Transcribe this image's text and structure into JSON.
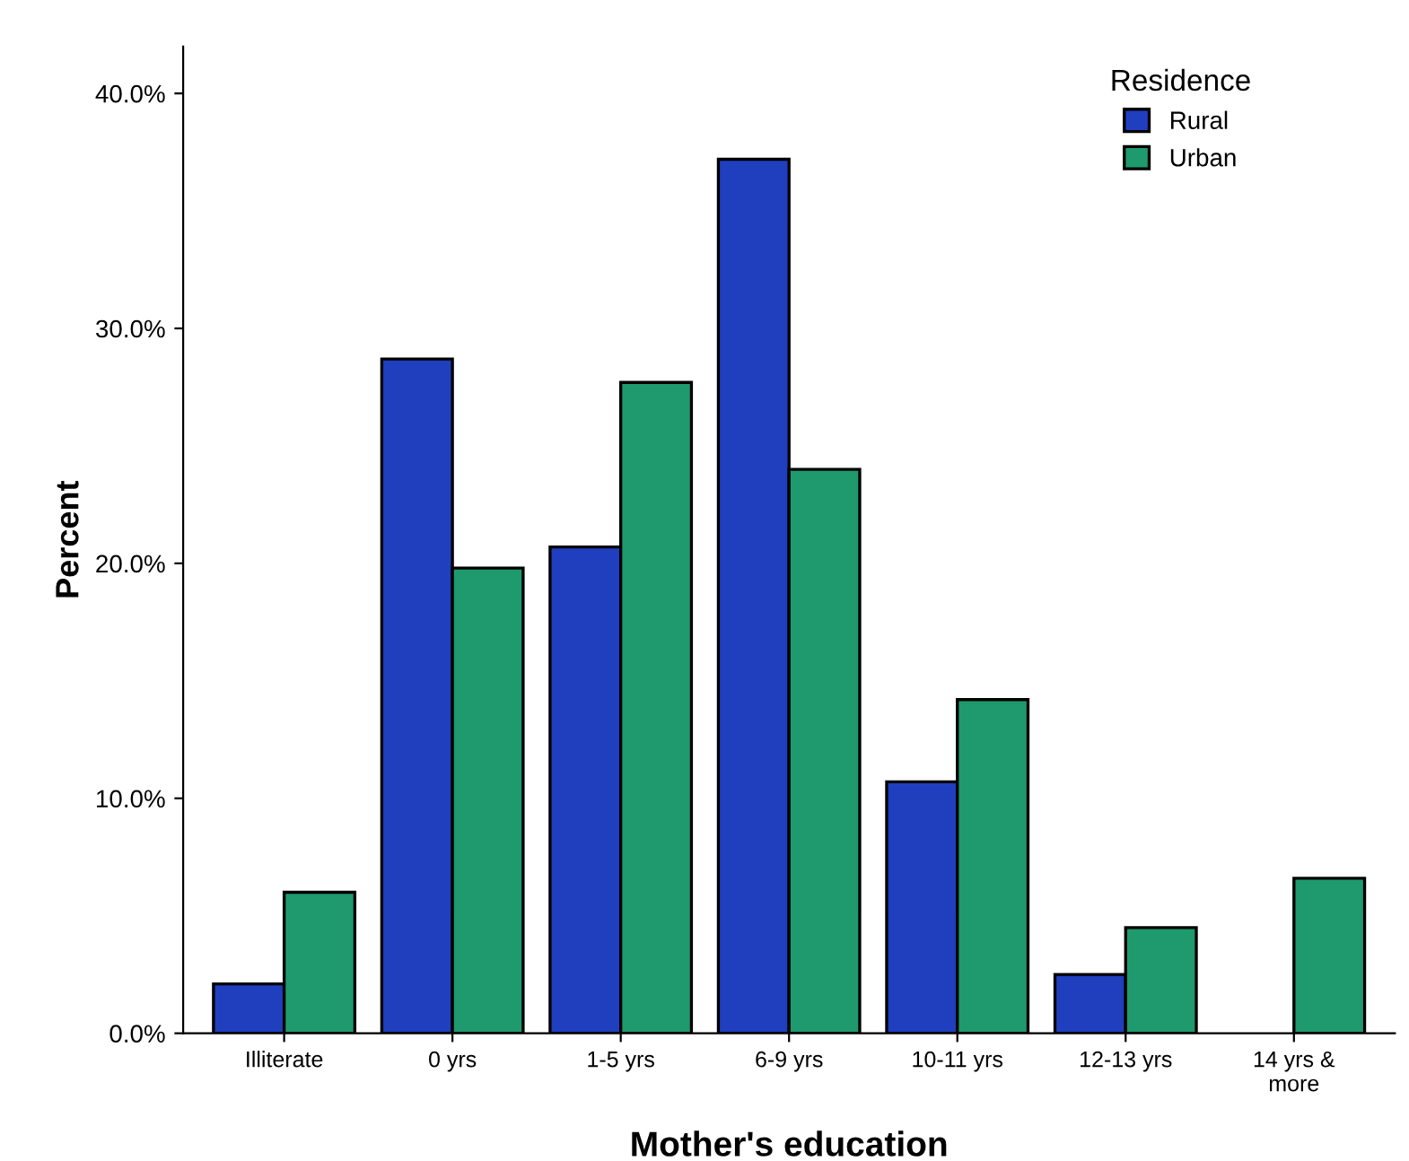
{
  "chart_data": {
    "type": "bar",
    "xlabel": "Mother's education",
    "ylabel": "Percent",
    "legend_title": "Residence",
    "categories": [
      "Illiterate",
      "0 yrs",
      "1-5 yrs",
      "6-9 yrs",
      "10-11 yrs",
      "12-13 yrs",
      "14 yrs &\nmore"
    ],
    "series": [
      {
        "name": "Rural",
        "color": "#1f3fbf",
        "values": [
          2.1,
          28.7,
          20.7,
          37.2,
          10.7,
          2.5,
          null
        ]
      },
      {
        "name": "Urban",
        "color": "#1f9a6e",
        "values": [
          6.0,
          19.8,
          27.7,
          24.0,
          14.2,
          4.5,
          6.6
        ]
      }
    ],
    "ylim": [
      0,
      42
    ],
    "yticks": [
      {
        "value": 0,
        "label": "0.0%"
      },
      {
        "value": 10,
        "label": "10.0%"
      },
      {
        "value": 20,
        "label": "20.0%"
      },
      {
        "value": 30,
        "label": "30.0%"
      },
      {
        "value": 40,
        "label": "40.0%"
      }
    ],
    "grid": false,
    "legend": "top right"
  }
}
